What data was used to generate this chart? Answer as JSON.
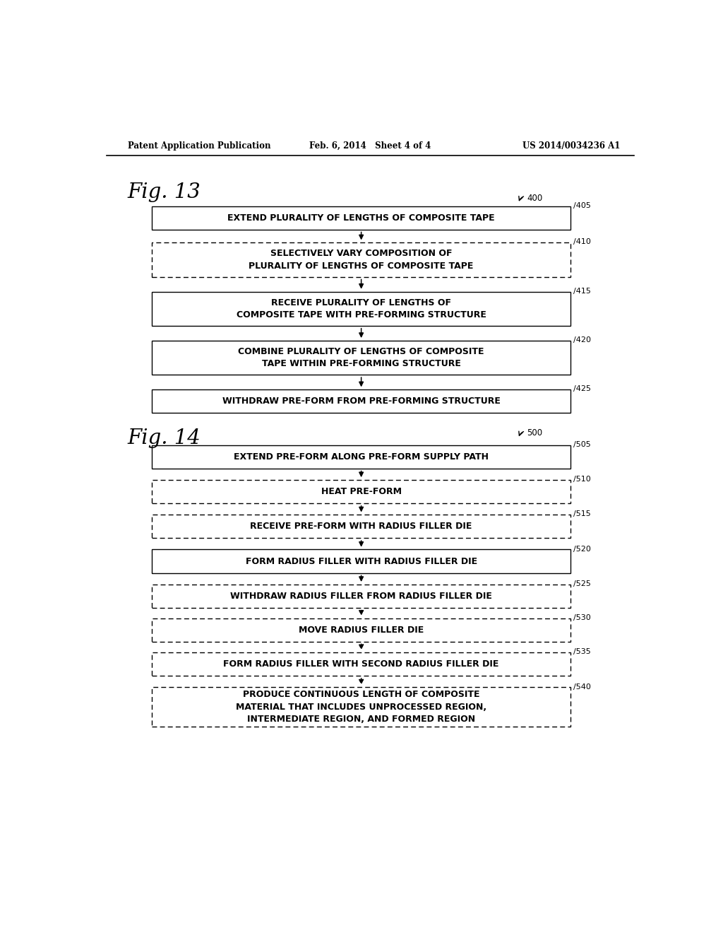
{
  "header_left": "Patent Application Publication",
  "header_mid": "Feb. 6, 2014   Sheet 4 of 4",
  "header_right": "US 2014/0034236 A1",
  "fig13_label": "Fig. 13",
  "fig14_label": "Fig. 14",
  "fig13_ref": "400",
  "fig14_ref": "500",
  "fig13_boxes": [
    {
      "label": "EXTEND PLURALITY OF LENGTHS OF COMPOSITE TAPE",
      "ref": "405",
      "dashed": false
    },
    {
      "label": "SELECTIVELY VARY COMPOSITION OF\nPLURALITY OF LENGTHS OF COMPOSITE TAPE",
      "ref": "410",
      "dashed": true
    },
    {
      "label": "RECEIVE PLURALITY OF LENGTHS OF\nCOMPOSITE TAPE WITH PRE-FORMING STRUCTURE",
      "ref": "415",
      "dashed": false
    },
    {
      "label": "COMBINE PLURALITY OF LENGTHS OF COMPOSITE\nTAPE WITHIN PRE-FORMING STRUCTURE",
      "ref": "420",
      "dashed": false
    },
    {
      "label": "WITHDRAW PRE-FORM FROM PRE-FORMING STRUCTURE",
      "ref": "425",
      "dashed": false
    }
  ],
  "fig14_boxes": [
    {
      "label": "EXTEND PRE-FORM ALONG PRE-FORM SUPPLY PATH",
      "ref": "505",
      "dashed": false
    },
    {
      "label": "HEAT PRE-FORM",
      "ref": "510",
      "dashed": true
    },
    {
      "label": "RECEIVE PRE-FORM WITH RADIUS FILLER DIE",
      "ref": "515",
      "dashed": true
    },
    {
      "label": "FORM RADIUS FILLER WITH RADIUS FILLER DIE",
      "ref": "520",
      "dashed": false
    },
    {
      "label": "WITHDRAW RADIUS FILLER FROM RADIUS FILLER DIE",
      "ref": "525",
      "dashed": true
    },
    {
      "label": "MOVE RADIUS FILLER DIE",
      "ref": "530",
      "dashed": true
    },
    {
      "label": "FORM RADIUS FILLER WITH SECOND RADIUS FILLER DIE",
      "ref": "535",
      "dashed": true
    },
    {
      "label": "PRODUCE CONTINUOUS LENGTH OF COMPOSITE\nMATERIAL THAT INCLUDES UNPROCESSED REGION,\nINTERMEDIATE REGION, AND FORMED REGION",
      "ref": "540",
      "dashed": true
    }
  ],
  "bg_color": "#ffffff",
  "box_edge_color": "#000000",
  "text_color": "#000000"
}
